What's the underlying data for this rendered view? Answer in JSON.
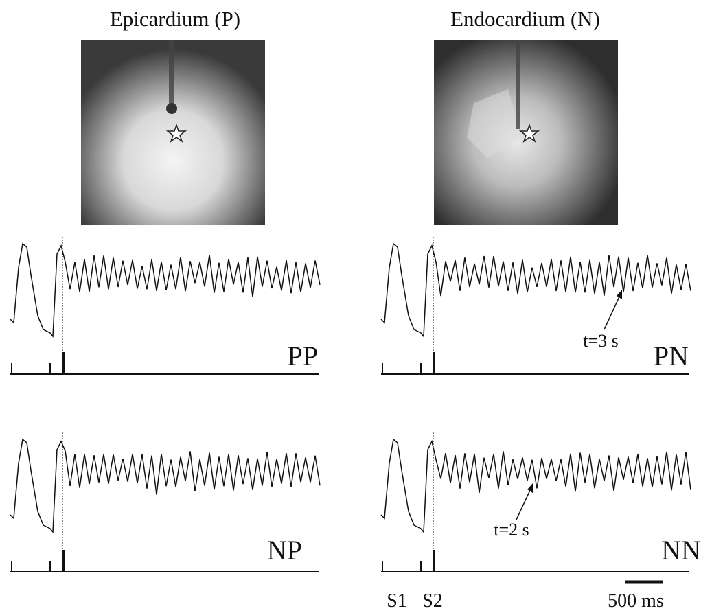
{
  "figure": {
    "images": [
      {
        "title": "Epicardium (P)"
      },
      {
        "title": "Endocardium (N)"
      }
    ],
    "panels": [
      {
        "label": "PP"
      },
      {
        "label": "PN",
        "annotation": "t=3 s"
      },
      {
        "label": "NP"
      },
      {
        "label": "NN",
        "annotation": "t=2 s"
      }
    ],
    "stimuli": [
      "S1",
      "S2"
    ],
    "scale_bar": "500 ms"
  }
}
